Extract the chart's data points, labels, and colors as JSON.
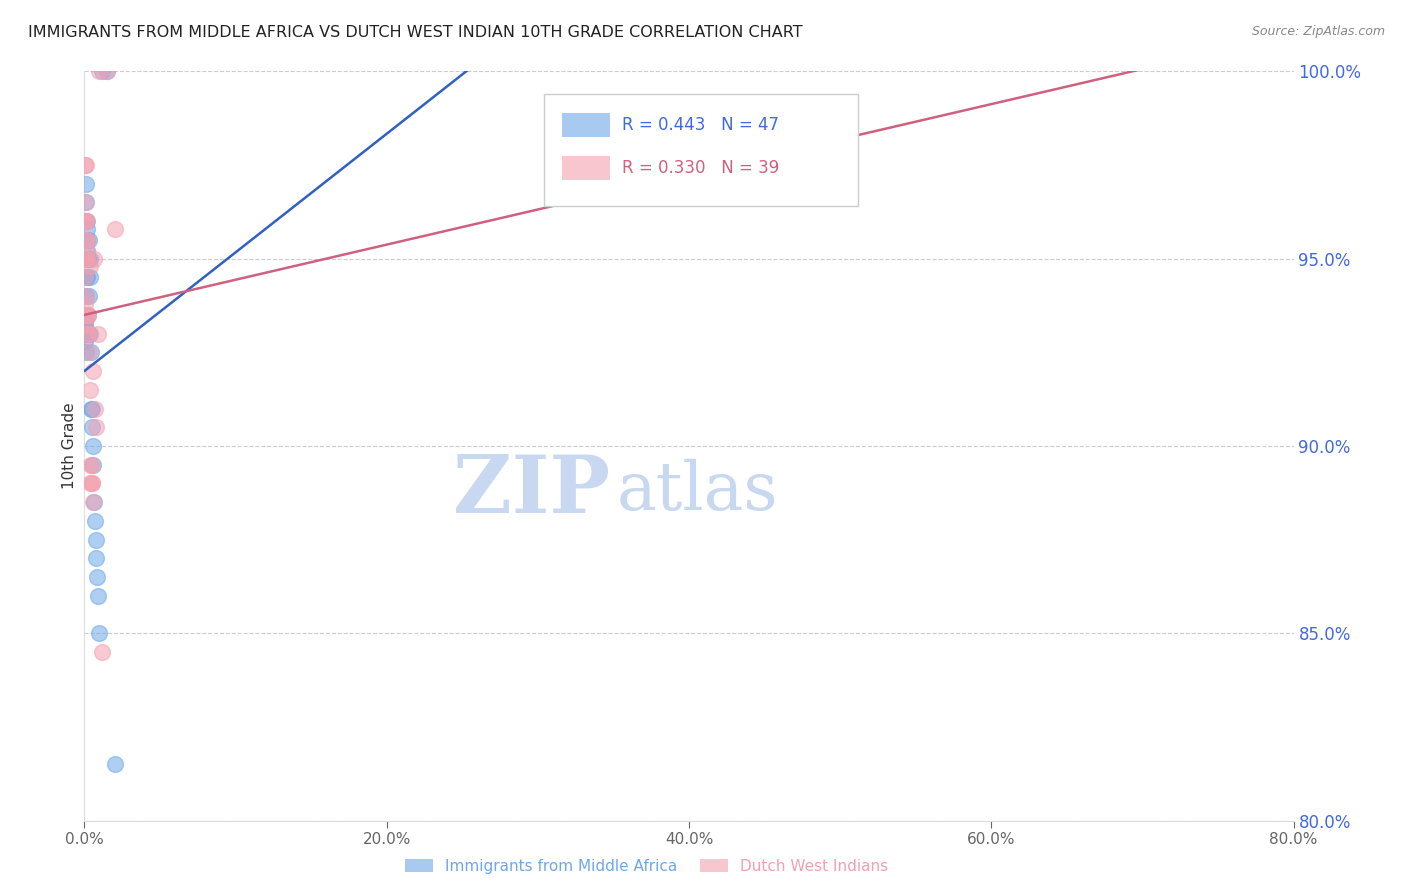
{
  "title": "IMMIGRANTS FROM MIDDLE AFRICA VS DUTCH WEST INDIAN 10TH GRADE CORRELATION CHART",
  "source": "Source: ZipAtlas.com",
  "xlabel": "",
  "ylabel": "10th Grade",
  "xlim": [
    0.0,
    80.0
  ],
  "ylim": [
    80.0,
    100.0
  ],
  "xticks": [
    0.0,
    20.0,
    40.0,
    60.0,
    80.0
  ],
  "yticks": [
    80.0,
    85.0,
    90.0,
    95.0,
    100.0
  ],
  "watermark_zip": "ZIP",
  "watermark_atlas": "atlas",
  "blue_label": "Immigrants from Middle Africa",
  "pink_label": "Dutch West Indians",
  "blue_R": 0.443,
  "blue_N": 47,
  "pink_R": 0.33,
  "pink_N": 39,
  "blue_color": "#6EA8E8",
  "pink_color": "#F4A0B0",
  "blue_line_color": "#3060C0",
  "pink_line_color": "#D06080",
  "blue_trend": [
    0.0,
    92.0,
    30.0,
    101.5
  ],
  "pink_trend": [
    0.0,
    93.5,
    80.0,
    101.0
  ],
  "blue_scatter_x": [
    0.05,
    0.08,
    0.1,
    0.12,
    0.15,
    0.18,
    0.2,
    0.22,
    0.25,
    0.28,
    0.3,
    0.32,
    0.35,
    0.38,
    0.4,
    0.42,
    0.45,
    0.48,
    0.5,
    0.55,
    0.6,
    0.65,
    0.7,
    0.75,
    0.8,
    0.85,
    0.9,
    1.0,
    0.02,
    0.03,
    0.04,
    0.06,
    0.07,
    0.09,
    0.11,
    0.13,
    0.16,
    0.19,
    0.23,
    0.015,
    0.025,
    0.035,
    0.045,
    0.055,
    1.2,
    1.5,
    2.0
  ],
  "blue_scatter_y": [
    93.5,
    96.5,
    97.0,
    95.0,
    96.0,
    95.5,
    94.5,
    95.0,
    93.5,
    95.5,
    94.0,
    93.0,
    94.5,
    95.0,
    93.0,
    92.5,
    91.0,
    90.5,
    91.0,
    90.0,
    89.5,
    88.5,
    88.0,
    87.5,
    87.0,
    86.5,
    86.0,
    85.0,
    93.0,
    93.2,
    93.4,
    93.5,
    92.8,
    92.5,
    94.0,
    94.5,
    95.8,
    95.2,
    95.0,
    93.0,
    93.1,
    93.2,
    93.3,
    93.4,
    100.0,
    100.0,
    81.5
  ],
  "pink_scatter_x": [
    0.05,
    0.08,
    0.1,
    0.15,
    0.2,
    0.25,
    0.3,
    0.35,
    0.4,
    0.45,
    0.5,
    0.55,
    0.6,
    0.7,
    0.8,
    0.03,
    0.06,
    0.09,
    0.12,
    0.18,
    0.22,
    0.28,
    0.04,
    0.07,
    0.11,
    0.14,
    0.17,
    0.38,
    1.0,
    1.5,
    2.0,
    2.5,
    0.42,
    0.48,
    0.65,
    0.9,
    0.015,
    0.025,
    1.2
  ],
  "pink_scatter_y": [
    94.5,
    96.0,
    97.5,
    95.5,
    93.0,
    93.5,
    92.5,
    91.5,
    89.0,
    89.5,
    89.0,
    92.0,
    88.5,
    91.0,
    90.5,
    93.8,
    95.0,
    94.0,
    96.0,
    95.0,
    93.5,
    93.0,
    96.5,
    97.5,
    96.0,
    95.5,
    95.2,
    94.8,
    100.0,
    100.0,
    95.8,
    100.5,
    89.5,
    89.0,
    95.0,
    93.0,
    93.5,
    93.2,
    84.5
  ],
  "background_color": "#ffffff",
  "grid_color": "#cccccc",
  "title_color": "#222222",
  "axis_label_color": "#333333",
  "right_tick_color": "#4169E1",
  "watermark_color_zip": "#C8D8F0",
  "watermark_color_atlas": "#C8D8F0",
  "legend_text_blue": "#4169E1",
  "legend_text_pink": "#D06080"
}
